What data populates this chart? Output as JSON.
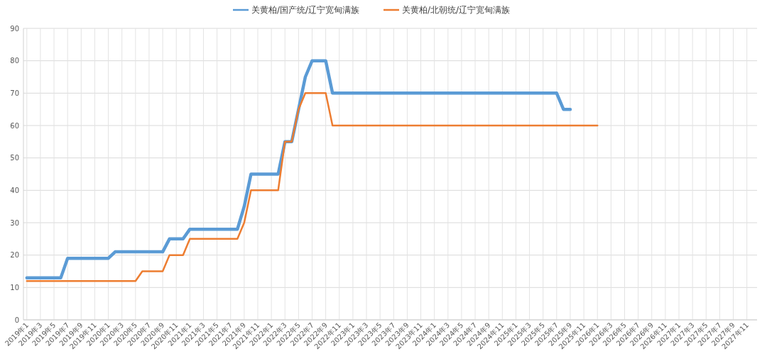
{
  "chart_data": {
    "type": "line",
    "categories": [
      "2019年1",
      null,
      "2019年3",
      null,
      "2019年5",
      null,
      "2019年7",
      null,
      "2019年9",
      null,
      "2019年11",
      null,
      "2020年1",
      null,
      "2020年3",
      null,
      "2020年5",
      null,
      "2020年7",
      null,
      "2020年9",
      null,
      "2020年11",
      null,
      "2021年1",
      null,
      "2021年3",
      null,
      "2021年5",
      null,
      "2021年7",
      null,
      "2021年9",
      null,
      "2021年11",
      null,
      "2022年1",
      null,
      "2022年3",
      null,
      "2022年5",
      null,
      "2022年7",
      null,
      "2022年9",
      null,
      "2022年11",
      null,
      "2023年1",
      null,
      "2023年3",
      null,
      "2023年5",
      null,
      "2023年7",
      null,
      "2023年9",
      null,
      "2023年11",
      null,
      "2024年1",
      null,
      "2024年3",
      null,
      "2024年5",
      null,
      "2024年7",
      null,
      "2024年9",
      null,
      "2024年11",
      null,
      "2025年1",
      null,
      "2025年3",
      null,
      "2025年5",
      null,
      "2025年7",
      null,
      "2025年9",
      null,
      "2025年11",
      null,
      "2026年1",
      null,
      "2026年3",
      null,
      "2026年5",
      null,
      "2026年7",
      null,
      "2026年9",
      null,
      "2026年11",
      null,
      "2027年1",
      null,
      "2027年3",
      null,
      "2027年5",
      null,
      "2027年7",
      null,
      "2027年9",
      null,
      "2027年11",
      null
    ],
    "series": [
      {
        "name": "关黄柏/国产统/辽宁宽甸满族",
        "color": "#5b9bd5",
        "values": [
          13,
          13,
          13,
          13,
          13,
          13,
          19,
          19,
          19,
          19,
          19,
          19,
          19,
          21,
          21,
          21,
          21,
          21,
          21,
          21,
          21,
          25,
          25,
          25,
          28,
          28,
          28,
          28,
          28,
          28,
          28,
          28,
          35,
          45,
          45,
          45,
          45,
          45,
          55,
          55,
          65,
          75,
          80,
          80,
          80,
          70,
          70,
          70,
          70,
          70,
          70,
          70,
          70,
          70,
          70,
          70,
          70,
          70,
          70,
          70,
          70,
          70,
          70,
          70,
          70,
          70,
          70,
          70,
          70,
          70,
          70,
          70,
          70,
          70,
          70,
          70,
          70,
          70,
          70,
          65,
          65,
          null,
          null,
          null,
          null,
          null,
          null,
          null,
          null,
          null,
          null,
          null,
          null,
          null,
          null,
          null,
          null,
          null,
          null,
          null,
          null,
          null,
          null,
          null,
          null,
          null,
          null,
          null
        ]
      },
      {
        "name": "关黄柏/北朝统/辽宁宽甸满族",
        "color": "#ed7d31",
        "values": [
          12,
          12,
          12,
          12,
          12,
          12,
          12,
          12,
          12,
          12,
          12,
          12,
          12,
          12,
          12,
          12,
          12,
          15,
          15,
          15,
          15,
          20,
          20,
          20,
          25,
          25,
          25,
          25,
          25,
          25,
          25,
          25,
          30,
          40,
          40,
          40,
          40,
          40,
          55,
          55,
          65,
          70,
          70,
          70,
          70,
          60,
          60,
          60,
          60,
          60,
          60,
          60,
          60,
          60,
          60,
          60,
          60,
          60,
          60,
          60,
          60,
          60,
          60,
          60,
          60,
          60,
          60,
          60,
          60,
          60,
          60,
          60,
          60,
          60,
          60,
          60,
          60,
          60,
          60,
          60,
          60,
          60,
          60,
          60,
          60,
          null,
          null,
          null,
          null,
          null,
          null,
          null,
          null,
          null,
          null,
          null,
          null,
          null,
          null,
          null,
          null,
          null,
          null,
          null,
          null,
          null,
          null,
          null
        ]
      }
    ],
    "ylim": [
      0,
      90
    ],
    "yticks": [
      0,
      10,
      20,
      30,
      40,
      50,
      60,
      70,
      80,
      90
    ],
    "grid": true,
    "legend": "top",
    "marker": "none",
    "line_style": "solid"
  }
}
